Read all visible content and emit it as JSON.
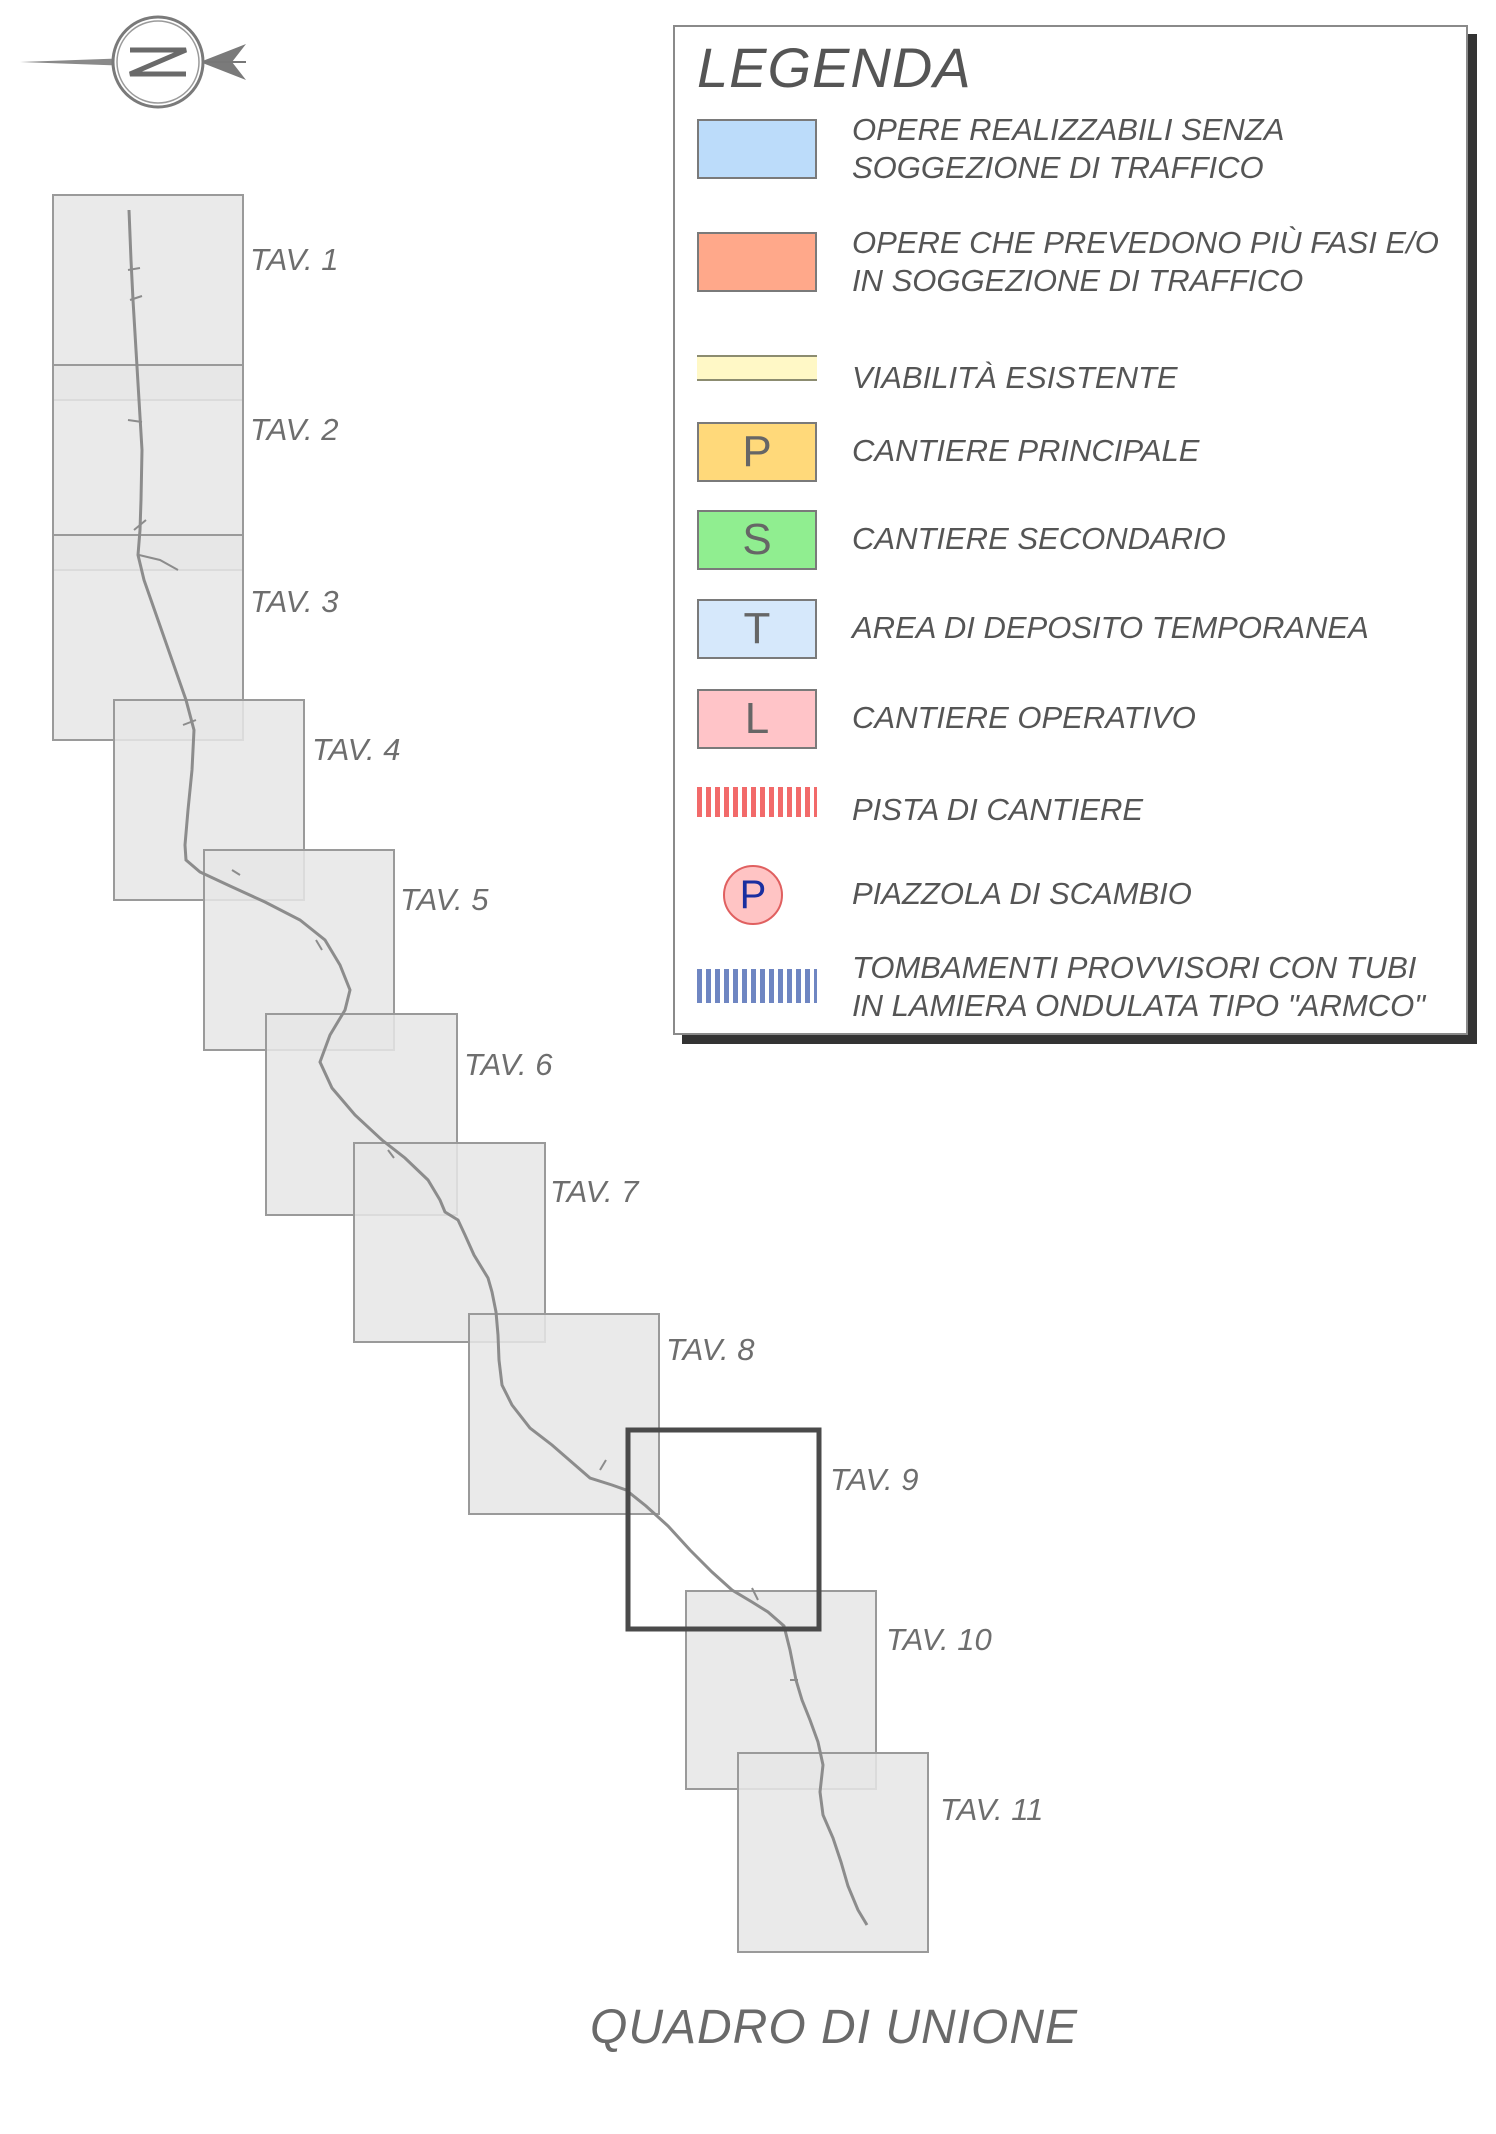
{
  "legend": {
    "title": "LEGENDA",
    "items": [
      {
        "label_lines": [
          "OPERE REALIZZABILI SENZA",
          "SOGGEZIONE DI TRAFFICO"
        ],
        "swatch": "box",
        "color": "#bcdcfa",
        "letter": ""
      },
      {
        "label_lines": [
          "OPERE CHE PREVEDONO PIÙ FASI E/O",
          "IN SOGGEZIONE DI TRAFFICO"
        ],
        "swatch": "box",
        "color": "#ffa88a",
        "letter": ""
      },
      {
        "label_lines": [
          "VIABILITÀ ESISTENTE"
        ],
        "swatch": "thin-band",
        "color": "#fff8c6",
        "letter": ""
      },
      {
        "label_lines": [
          "CANTIERE PRINCIPALE"
        ],
        "swatch": "box",
        "color": "#ffd97a",
        "letter": "P"
      },
      {
        "label_lines": [
          "CANTIERE SECONDARIO"
        ],
        "swatch": "box",
        "color": "#90ee90",
        "letter": "S"
      },
      {
        "label_lines": [
          "AREA DI DEPOSITO TEMPORANEA"
        ],
        "swatch": "box",
        "color": "#d6e8fb",
        "letter": "T"
      },
      {
        "label_lines": [
          "CANTIERE OPERATIVO"
        ],
        "swatch": "box",
        "color": "#ffc4c8",
        "letter": "L"
      },
      {
        "label_lines": [
          "PISTA DI CANTIERE"
        ],
        "swatch": "red-stripes",
        "color": "#f26a6a",
        "letter": ""
      },
      {
        "label_lines": [
          "PIAZZOLA DI SCAMBIO"
        ],
        "swatch": "circle",
        "color": "#ffc4c4",
        "letter": "P"
      },
      {
        "label_lines": [
          "TOMBAMENTI PROVVISORI CON TUBI",
          "IN LAMIERA ONDULATA TIPO \"ARMCO\""
        ],
        "swatch": "blue-stripes",
        "color": "#6f86c2",
        "letter": ""
      }
    ]
  },
  "sheets": [
    {
      "label": "TAV. 1",
      "highlighted": false
    },
    {
      "label": "TAV. 2",
      "highlighted": false
    },
    {
      "label": "TAV. 3",
      "highlighted": false
    },
    {
      "label": "TAV. 4",
      "highlighted": false
    },
    {
      "label": "TAV. 5",
      "highlighted": false
    },
    {
      "label": "TAV. 6",
      "highlighted": false
    },
    {
      "label": "TAV. 7",
      "highlighted": false
    },
    {
      "label": "TAV. 8",
      "highlighted": false
    },
    {
      "label": "TAV. 9",
      "highlighted": true
    },
    {
      "label": "TAV. 10",
      "highlighted": false
    },
    {
      "label": "TAV. 11",
      "highlighted": false
    }
  ],
  "caption": "QUADRO DI UNIONE",
  "colors": {
    "sheet_fill": "#e6e6e6",
    "sheet_stroke": "#9a9a9a",
    "highlight_stroke": "#4a4a4a",
    "route": "#8c8c8c"
  }
}
